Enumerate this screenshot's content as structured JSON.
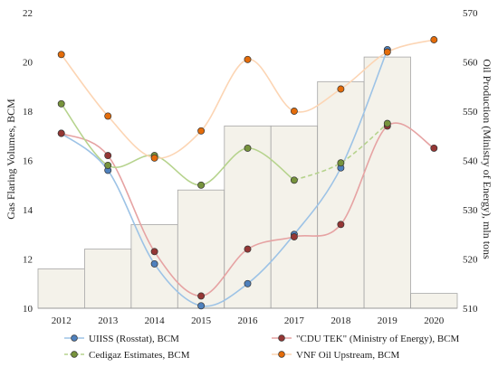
{
  "chart_data": {
    "type": "bar+line",
    "categories": [
      "2012",
      "2013",
      "2014",
      "2015",
      "2016",
      "2017",
      "2018",
      "2019",
      "2020"
    ],
    "bars": {
      "axis": "right",
      "values": [
        518,
        522,
        527,
        534,
        547,
        547,
        556,
        561,
        513
      ],
      "color": "#f4f2ea"
    },
    "y_left": {
      "label": "Gas Flaring Volumes, BCM",
      "lim": [
        10,
        22
      ],
      "ticks": [
        10,
        12,
        14,
        16,
        18,
        20,
        22
      ]
    },
    "y_right": {
      "label": "Oil Production (Ministry of Energy), mln tons",
      "lim": [
        510,
        570
      ],
      "ticks": [
        510,
        520,
        530,
        540,
        550,
        560,
        570
      ]
    },
    "series": [
      {
        "name": "UIISS (Rosstat), BCM",
        "color": "#4f81bd",
        "line": "#9dc3e6",
        "dash": false,
        "values": [
          17.1,
          15.6,
          11.8,
          10.1,
          11.0,
          13.0,
          15.7,
          20.5,
          null
        ]
      },
      {
        "name": "\"CDU TEK\" (Ministry of Energy), BCM",
        "color": "#953735",
        "line": "#e6a3a3",
        "dash": false,
        "values": [
          17.1,
          16.2,
          12.3,
          10.5,
          12.4,
          12.9,
          13.4,
          17.4,
          16.5
        ]
      },
      {
        "name": "Cedigaz Estimates, BCM",
        "color": "#77933c",
        "line": "#b6d38d",
        "dash": true,
        "dash_from": 5,
        "values": [
          18.3,
          15.8,
          16.2,
          15.0,
          16.5,
          15.2,
          15.9,
          17.5,
          null
        ]
      },
      {
        "name": "VNF Oil Upstream, BCM",
        "color": "#e46c0a",
        "line": "#fcd5b4",
        "dash": false,
        "values": [
          20.3,
          17.8,
          16.1,
          17.2,
          20.1,
          18.0,
          18.9,
          20.4,
          20.9
        ]
      }
    ],
    "legend": "bottom",
    "grid": false
  }
}
